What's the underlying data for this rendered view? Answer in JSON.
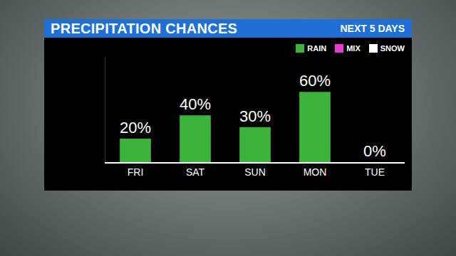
{
  "chart_data": {
    "type": "bar",
    "title": "PRECIPITATION CHANCES",
    "subtitle": "NEXT 5 DAYS",
    "categories": [
      "FRI",
      "SAT",
      "SUN",
      "MON",
      "TUE"
    ],
    "series": [
      {
        "name": "RAIN",
        "color": "#3cb43c",
        "values": [
          20,
          40,
          30,
          60,
          0
        ],
        "value_labels": [
          "20%",
          "40%",
          "30%",
          "60%",
          "0%"
        ]
      },
      {
        "name": "MIX",
        "color": "#e83ad6",
        "values": [
          null,
          null,
          null,
          null,
          null
        ]
      },
      {
        "name": "SNOW",
        "color": "#ffffff",
        "values": [
          null,
          null,
          null,
          null,
          null
        ]
      }
    ],
    "ylim": [
      0,
      90
    ],
    "tick_labels": "x",
    "data_labels": true,
    "legend": "upper right",
    "grid": false
  }
}
